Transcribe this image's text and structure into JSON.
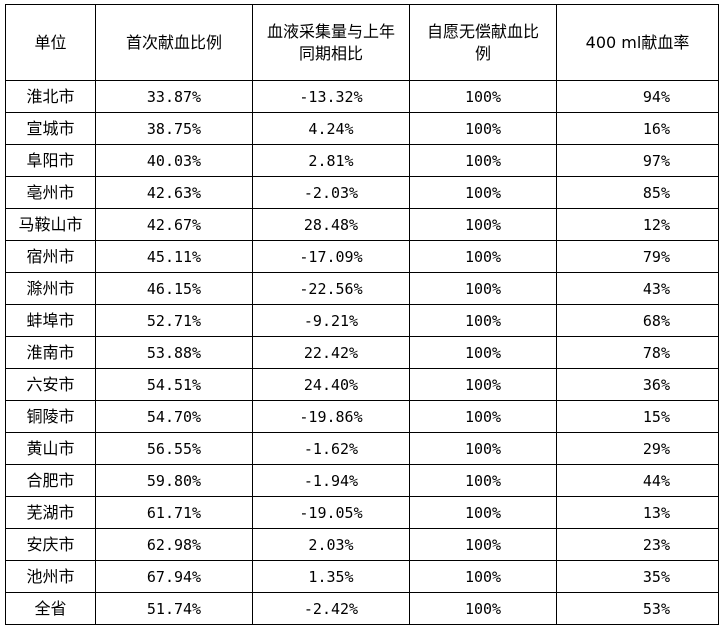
{
  "headers": [
    "单位",
    "首次献血比例",
    "血液采集量与上年同期相比",
    "自愿无偿献血比例",
    "400 ml献血率"
  ],
  "rows": [
    [
      "淮北市",
      "33.87%",
      "-13.32%",
      "100%",
      "94%"
    ],
    [
      "宣城市",
      "38.75%",
      "4.24%",
      "100%",
      "16%"
    ],
    [
      "阜阳市",
      "40.03%",
      "2.81%",
      "100%",
      "97%"
    ],
    [
      "亳州市",
      "42.63%",
      "-2.03%",
      "100%",
      "85%"
    ],
    [
      "马鞍山市",
      "42.67%",
      "28.48%",
      "100%",
      "12%"
    ],
    [
      "宿州市",
      "45.11%",
      "-17.09%",
      "100%",
      "79%"
    ],
    [
      "滁州市",
      "46.15%",
      "-22.56%",
      "100%",
      "43%"
    ],
    [
      "蚌埠市",
      "52.71%",
      "-9.21%",
      "100%",
      "68%"
    ],
    [
      "淮南市",
      "53.88%",
      "22.42%",
      "100%",
      "78%"
    ],
    [
      "六安市",
      "54.51%",
      "24.40%",
      "100%",
      "36%"
    ],
    [
      "铜陵市",
      "54.70%",
      "-19.86%",
      "100%",
      "15%"
    ],
    [
      "黄山市",
      "56.55%",
      "-1.62%",
      "100%",
      "29%"
    ],
    [
      "合肥市",
      "59.80%",
      "-1.94%",
      "100%",
      "44%"
    ],
    [
      "芜湖市",
      "61.71%",
      "-19.05%",
      "100%",
      "13%"
    ],
    [
      "安庆市",
      "62.98%",
      "2.03%",
      "100%",
      "23%"
    ],
    [
      "池州市",
      "67.94%",
      "1.35%",
      "100%",
      "35%"
    ],
    [
      "全省",
      "51.74%",
      "-2.42%",
      "100%",
      "53%"
    ]
  ]
}
